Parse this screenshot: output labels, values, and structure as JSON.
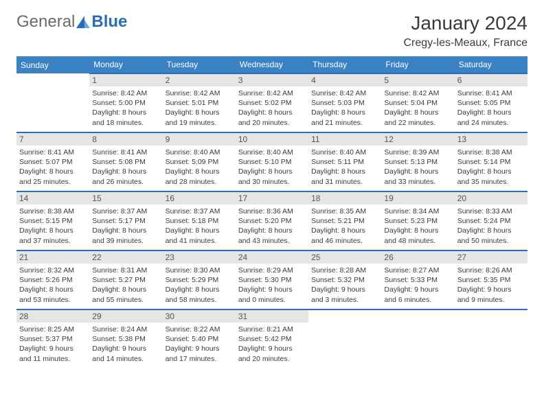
{
  "logo": {
    "text1": "General",
    "text2": "Blue"
  },
  "title": "January 2024",
  "location": "Cregy-les-Meaux, France",
  "header_bg": "#3b82c4",
  "border_color": "#2a6db8",
  "daynum_bg": "#e5e5e5",
  "weekdays": [
    "Sunday",
    "Monday",
    "Tuesday",
    "Wednesday",
    "Thursday",
    "Friday",
    "Saturday"
  ],
  "weeks": [
    [
      null,
      {
        "n": "1",
        "sr": "8:42 AM",
        "ss": "5:00 PM",
        "dl": "8 hours and 18 minutes."
      },
      {
        "n": "2",
        "sr": "8:42 AM",
        "ss": "5:01 PM",
        "dl": "8 hours and 19 minutes."
      },
      {
        "n": "3",
        "sr": "8:42 AM",
        "ss": "5:02 PM",
        "dl": "8 hours and 20 minutes."
      },
      {
        "n": "4",
        "sr": "8:42 AM",
        "ss": "5:03 PM",
        "dl": "8 hours and 21 minutes."
      },
      {
        "n": "5",
        "sr": "8:42 AM",
        "ss": "5:04 PM",
        "dl": "8 hours and 22 minutes."
      },
      {
        "n": "6",
        "sr": "8:41 AM",
        "ss": "5:05 PM",
        "dl": "8 hours and 24 minutes."
      }
    ],
    [
      {
        "n": "7",
        "sr": "8:41 AM",
        "ss": "5:07 PM",
        "dl": "8 hours and 25 minutes."
      },
      {
        "n": "8",
        "sr": "8:41 AM",
        "ss": "5:08 PM",
        "dl": "8 hours and 26 minutes."
      },
      {
        "n": "9",
        "sr": "8:40 AM",
        "ss": "5:09 PM",
        "dl": "8 hours and 28 minutes."
      },
      {
        "n": "10",
        "sr": "8:40 AM",
        "ss": "5:10 PM",
        "dl": "8 hours and 30 minutes."
      },
      {
        "n": "11",
        "sr": "8:40 AM",
        "ss": "5:11 PM",
        "dl": "8 hours and 31 minutes."
      },
      {
        "n": "12",
        "sr": "8:39 AM",
        "ss": "5:13 PM",
        "dl": "8 hours and 33 minutes."
      },
      {
        "n": "13",
        "sr": "8:38 AM",
        "ss": "5:14 PM",
        "dl": "8 hours and 35 minutes."
      }
    ],
    [
      {
        "n": "14",
        "sr": "8:38 AM",
        "ss": "5:15 PM",
        "dl": "8 hours and 37 minutes."
      },
      {
        "n": "15",
        "sr": "8:37 AM",
        "ss": "5:17 PM",
        "dl": "8 hours and 39 minutes."
      },
      {
        "n": "16",
        "sr": "8:37 AM",
        "ss": "5:18 PM",
        "dl": "8 hours and 41 minutes."
      },
      {
        "n": "17",
        "sr": "8:36 AM",
        "ss": "5:20 PM",
        "dl": "8 hours and 43 minutes."
      },
      {
        "n": "18",
        "sr": "8:35 AM",
        "ss": "5:21 PM",
        "dl": "8 hours and 46 minutes."
      },
      {
        "n": "19",
        "sr": "8:34 AM",
        "ss": "5:23 PM",
        "dl": "8 hours and 48 minutes."
      },
      {
        "n": "20",
        "sr": "8:33 AM",
        "ss": "5:24 PM",
        "dl": "8 hours and 50 minutes."
      }
    ],
    [
      {
        "n": "21",
        "sr": "8:32 AM",
        "ss": "5:26 PM",
        "dl": "8 hours and 53 minutes."
      },
      {
        "n": "22",
        "sr": "8:31 AM",
        "ss": "5:27 PM",
        "dl": "8 hours and 55 minutes."
      },
      {
        "n": "23",
        "sr": "8:30 AM",
        "ss": "5:29 PM",
        "dl": "8 hours and 58 minutes."
      },
      {
        "n": "24",
        "sr": "8:29 AM",
        "ss": "5:30 PM",
        "dl": "9 hours and 0 minutes."
      },
      {
        "n": "25",
        "sr": "8:28 AM",
        "ss": "5:32 PM",
        "dl": "9 hours and 3 minutes."
      },
      {
        "n": "26",
        "sr": "8:27 AM",
        "ss": "5:33 PM",
        "dl": "9 hours and 6 minutes."
      },
      {
        "n": "27",
        "sr": "8:26 AM",
        "ss": "5:35 PM",
        "dl": "9 hours and 9 minutes."
      }
    ],
    [
      {
        "n": "28",
        "sr": "8:25 AM",
        "ss": "5:37 PM",
        "dl": "9 hours and 11 minutes."
      },
      {
        "n": "29",
        "sr": "8:24 AM",
        "ss": "5:38 PM",
        "dl": "9 hours and 14 minutes."
      },
      {
        "n": "30",
        "sr": "8:22 AM",
        "ss": "5:40 PM",
        "dl": "9 hours and 17 minutes."
      },
      {
        "n": "31",
        "sr": "8:21 AM",
        "ss": "5:42 PM",
        "dl": "9 hours and 20 minutes."
      },
      null,
      null,
      null
    ]
  ],
  "labels": {
    "sunrise": "Sunrise:",
    "sunset": "Sunset:",
    "daylight": "Daylight:"
  }
}
